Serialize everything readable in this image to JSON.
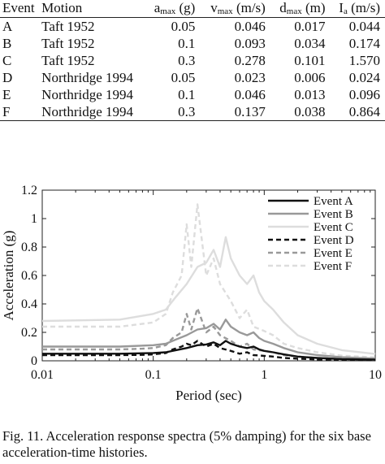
{
  "table": {
    "headers": [
      {
        "base": "Event",
        "sub": "",
        "unit": ""
      },
      {
        "base": "Motion",
        "sub": "",
        "unit": ""
      },
      {
        "base": "a",
        "sub": "max",
        "unit": " (g)"
      },
      {
        "base": "v",
        "sub": "max",
        "unit": " (m/s)"
      },
      {
        "base": "d",
        "sub": "max",
        "unit": " (m)"
      },
      {
        "base": "I",
        "sub": "a",
        "unit": " (m/s)"
      }
    ],
    "rows": [
      [
        "A",
        "Taft 1952",
        "0.05",
        "0.046",
        "0.017",
        "0.044"
      ],
      [
        "B",
        "Taft 1952",
        "0.1",
        "0.093",
        "0.034",
        "0.174"
      ],
      [
        "C",
        "Taft 1952",
        "0.3",
        "0.278",
        "0.101",
        "1.570"
      ],
      [
        "D",
        "Northridge 1994",
        "0.05",
        "0.023",
        "0.006",
        "0.024"
      ],
      [
        "E",
        "Northridge 1994",
        "0.1",
        "0.046",
        "0.013",
        "0.096"
      ],
      [
        "F",
        "Northridge 1994",
        "0.3",
        "0.137",
        "0.038",
        "0.864"
      ]
    ]
  },
  "chart_data": {
    "type": "line",
    "xlabel": "Period (sec)",
    "ylabel": "Acceleration (g)",
    "xscale": "log",
    "xlim": [
      0.01,
      10
    ],
    "ylim": [
      0,
      1.2
    ],
    "xticks": [
      0.01,
      0.1,
      1,
      10
    ],
    "xtick_labels": [
      "0.01",
      "0.1",
      "1",
      "10"
    ],
    "yticks": [
      0,
      0.2,
      0.4,
      0.6,
      0.8,
      1,
      1.2
    ],
    "ytick_labels": [
      "0",
      "0.2",
      "0.4",
      "0.6",
      "0.8",
      "1",
      "1.2"
    ],
    "legend_position": "top-right",
    "series": [
      {
        "name": "Event A",
        "color": "#111111",
        "dash": "solid",
        "x": [
          0.01,
          0.05,
          0.1,
          0.13,
          0.16,
          0.2,
          0.25,
          0.3,
          0.35,
          0.4,
          0.45,
          0.5,
          0.6,
          0.7,
          0.8,
          0.9,
          1,
          1.2,
          1.5,
          2,
          3,
          5,
          10
        ],
        "y": [
          0.05,
          0.05,
          0.055,
          0.06,
          0.075,
          0.09,
          0.11,
          0.115,
          0.13,
          0.11,
          0.14,
          0.12,
          0.1,
          0.09,
          0.1,
          0.08,
          0.07,
          0.06,
          0.045,
          0.03,
          0.02,
          0.012,
          0.008
        ]
      },
      {
        "name": "Event B",
        "color": "#999999",
        "dash": "solid",
        "x": [
          0.01,
          0.05,
          0.1,
          0.13,
          0.16,
          0.2,
          0.25,
          0.3,
          0.35,
          0.4,
          0.45,
          0.5,
          0.6,
          0.7,
          0.8,
          0.9,
          1,
          1.2,
          1.5,
          2,
          3,
          5,
          10
        ],
        "y": [
          0.1,
          0.1,
          0.11,
          0.12,
          0.15,
          0.18,
          0.22,
          0.23,
          0.26,
          0.22,
          0.29,
          0.24,
          0.2,
          0.18,
          0.2,
          0.16,
          0.14,
          0.12,
          0.09,
          0.06,
          0.04,
          0.025,
          0.016
        ]
      },
      {
        "name": "Event C",
        "color": "#dddddd",
        "dash": "solid",
        "x": [
          0.01,
          0.05,
          0.1,
          0.13,
          0.16,
          0.2,
          0.25,
          0.3,
          0.35,
          0.4,
          0.45,
          0.5,
          0.6,
          0.7,
          0.8,
          0.9,
          1,
          1.2,
          1.5,
          2,
          3,
          5,
          10
        ],
        "y": [
          0.28,
          0.29,
          0.33,
          0.36,
          0.45,
          0.54,
          0.66,
          0.69,
          0.78,
          0.66,
          0.87,
          0.72,
          0.6,
          0.54,
          0.6,
          0.48,
          0.42,
          0.36,
          0.27,
          0.18,
          0.12,
          0.075,
          0.048
        ]
      },
      {
        "name": "Event D",
        "color": "#111111",
        "dash": "6,4",
        "x": [
          0.01,
          0.05,
          0.08,
          0.1,
          0.13,
          0.15,
          0.18,
          0.2,
          0.22,
          0.25,
          0.3,
          0.35,
          0.4,
          0.5,
          0.6,
          0.7,
          0.8,
          1,
          1.2,
          1.5,
          2,
          3,
          5,
          10
        ],
        "y": [
          0.04,
          0.04,
          0.042,
          0.045,
          0.055,
          0.08,
          0.1,
          0.12,
          0.11,
          0.14,
          0.1,
          0.12,
          0.09,
          0.07,
          0.05,
          0.06,
          0.04,
          0.035,
          0.03,
          0.02,
          0.015,
          0.01,
          0.006,
          0.004
        ]
      },
      {
        "name": "Event E",
        "color": "#999999",
        "dash": "6,4",
        "x": [
          0.01,
          0.05,
          0.08,
          0.1,
          0.13,
          0.15,
          0.18,
          0.2,
          0.22,
          0.25,
          0.3,
          0.35,
          0.4,
          0.5,
          0.6,
          0.7,
          0.8,
          1,
          1.2,
          1.5,
          2,
          3,
          5,
          10
        ],
        "y": [
          0.08,
          0.08,
          0.085,
          0.09,
          0.11,
          0.16,
          0.2,
          0.33,
          0.22,
          0.37,
          0.2,
          0.24,
          0.18,
          0.14,
          0.1,
          0.12,
          0.08,
          0.07,
          0.06,
          0.04,
          0.03,
          0.02,
          0.012,
          0.008
        ]
      },
      {
        "name": "Event F",
        "color": "#dddddd",
        "dash": "6,4",
        "x": [
          0.01,
          0.05,
          0.08,
          0.1,
          0.13,
          0.15,
          0.18,
          0.2,
          0.22,
          0.25,
          0.3,
          0.35,
          0.4,
          0.5,
          0.6,
          0.7,
          0.8,
          1,
          1.2,
          1.5,
          2,
          3,
          5,
          10
        ],
        "y": [
          0.24,
          0.24,
          0.26,
          0.27,
          0.33,
          0.48,
          0.6,
          0.96,
          0.66,
          1.1,
          0.6,
          0.72,
          0.54,
          0.42,
          0.3,
          0.36,
          0.24,
          0.21,
          0.18,
          0.12,
          0.09,
          0.06,
          0.036,
          0.024
        ]
      }
    ]
  },
  "caption": "Fig. 11. Acceleration response spectra (5% damping) for the six base acceleration-time histories."
}
